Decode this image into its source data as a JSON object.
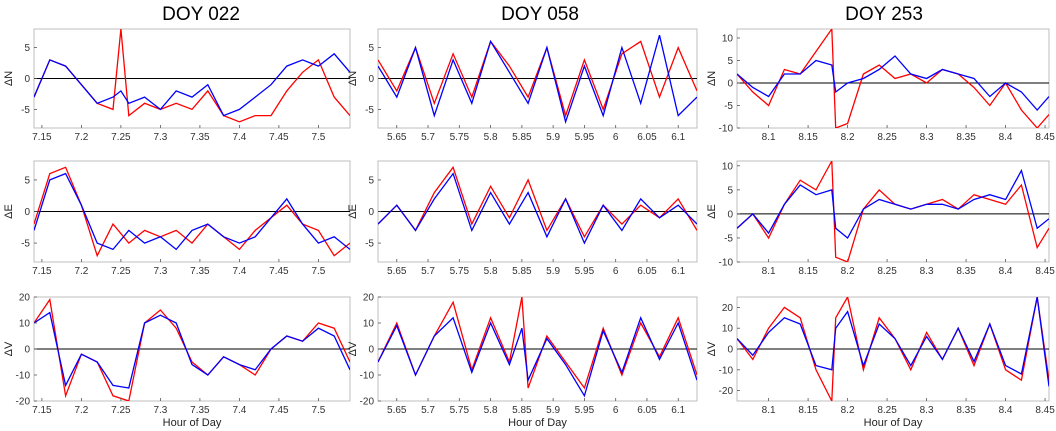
{
  "columns": [
    {
      "title": "DOY 022",
      "xlabel": "Hour of Day",
      "xticks": [
        "7.15",
        "7.2",
        "7.25",
        "7.3",
        "7.35",
        "7.4",
        "7.45",
        "7.5"
      ],
      "xlim": [
        7.14,
        7.54
      ]
    },
    {
      "title": "DOY 058",
      "xlabel": "Hour of Day",
      "xticks": [
        "5.65",
        "5.7",
        "5.75",
        "5.8",
        "5.85",
        "5.9",
        "5.95",
        "6",
        "6.05",
        "6.1"
      ],
      "xlim": [
        5.62,
        6.13
      ]
    },
    {
      "title": "DOY 253",
      "xlabel": "Hour of Day",
      "xticks": [
        "8.1",
        "8.15",
        "8.2",
        "8.25",
        "8.3",
        "8.35",
        "8.4",
        "8.45"
      ],
      "xlim": [
        8.06,
        8.455
      ]
    }
  ],
  "rows": [
    {
      "ylabel": "ΔN"
    },
    {
      "ylabel": "ΔE"
    },
    {
      "ylabel": "ΔV"
    }
  ],
  "chart_data": [
    {
      "type": "line",
      "panel": "DOY 022 ΔN",
      "ylabel": "ΔN",
      "xlim": [
        7.14,
        7.54
      ],
      "ylim": [
        -8,
        8
      ],
      "yticks": [
        -5,
        0,
        5
      ],
      "series": [
        {
          "color": "#ff0000",
          "x": [
            7.14,
            7.16,
            7.18,
            7.2,
            7.22,
            7.24,
            7.25,
            7.26,
            7.28,
            7.3,
            7.32,
            7.34,
            7.36,
            7.38,
            7.4,
            7.42,
            7.44,
            7.46,
            7.48,
            7.5,
            7.52,
            7.54
          ],
          "y": [
            -3,
            3,
            2,
            -1,
            -4,
            -5,
            8,
            -6,
            -4,
            -5,
            -4,
            -5,
            -2,
            -6,
            -7,
            -6,
            -6,
            -2,
            1,
            3,
            -3,
            -6
          ]
        },
        {
          "color": "#0000ff",
          "x": [
            7.14,
            7.16,
            7.18,
            7.2,
            7.22,
            7.24,
            7.25,
            7.26,
            7.28,
            7.3,
            7.32,
            7.34,
            7.36,
            7.38,
            7.4,
            7.42,
            7.44,
            7.46,
            7.48,
            7.5,
            7.52,
            7.54
          ],
          "y": [
            -3,
            3,
            2,
            -1,
            -4,
            -3,
            -2,
            -4,
            -3,
            -5,
            -2,
            -3,
            -1,
            -6,
            -5,
            -3,
            -1,
            2,
            3,
            2,
            4,
            1
          ]
        }
      ]
    },
    {
      "type": "line",
      "panel": "DOY 058 ΔN",
      "ylabel": "ΔN",
      "xlim": [
        5.62,
        6.13
      ],
      "ylim": [
        -8,
        8
      ],
      "yticks": [
        -5,
        0,
        5
      ],
      "series": [
        {
          "color": "#ff0000",
          "x": [
            5.62,
            5.65,
            5.68,
            5.71,
            5.74,
            5.77,
            5.8,
            5.83,
            5.86,
            5.89,
            5.92,
            5.95,
            5.98,
            6.01,
            6.04,
            6.07,
            6.1,
            6.13
          ],
          "y": [
            3,
            -2,
            5,
            -4,
            4,
            -3,
            6,
            2,
            -3,
            5,
            -6,
            3,
            -5,
            4,
            6,
            -3,
            5,
            -2
          ]
        },
        {
          "color": "#0000ff",
          "x": [
            5.62,
            5.65,
            5.68,
            5.71,
            5.74,
            5.77,
            5.8,
            5.83,
            5.86,
            5.89,
            5.92,
            5.95,
            5.98,
            6.01,
            6.04,
            6.07,
            6.1,
            6.13
          ],
          "y": [
            2,
            -3,
            5,
            -6,
            3,
            -4,
            6,
            1,
            -4,
            5,
            -7,
            2,
            -6,
            5,
            -4,
            7,
            -6,
            -3
          ]
        }
      ]
    },
    {
      "type": "line",
      "panel": "DOY 253 ΔN",
      "ylabel": "ΔN",
      "xlim": [
        8.06,
        8.455
      ],
      "ylim": [
        -10,
        12
      ],
      "yticks": [
        -10,
        -5,
        0,
        5,
        10
      ],
      "series": [
        {
          "color": "#ff0000",
          "x": [
            8.06,
            8.08,
            8.1,
            8.12,
            8.14,
            8.16,
            8.18,
            8.185,
            8.2,
            8.22,
            8.24,
            8.26,
            8.28,
            8.3,
            8.32,
            8.34,
            8.36,
            8.38,
            8.4,
            8.42,
            8.44,
            8.455
          ],
          "y": [
            2,
            -2,
            -5,
            3,
            2,
            7,
            12,
            -10,
            -9,
            2,
            4,
            1,
            2,
            0,
            3,
            2,
            -1,
            -5,
            0,
            -6,
            -10,
            -7
          ]
        },
        {
          "color": "#0000ff",
          "x": [
            8.06,
            8.08,
            8.1,
            8.12,
            8.14,
            8.16,
            8.18,
            8.185,
            8.2,
            8.22,
            8.24,
            8.26,
            8.28,
            8.3,
            8.32,
            8.34,
            8.36,
            8.38,
            8.4,
            8.42,
            8.44,
            8.455
          ],
          "y": [
            2,
            -1,
            -3,
            2,
            2,
            5,
            4,
            -2,
            0,
            1,
            3,
            6,
            2,
            1,
            3,
            2,
            1,
            -3,
            0,
            -2,
            -6,
            -3
          ]
        }
      ]
    },
    {
      "type": "line",
      "panel": "DOY 022 ΔE",
      "ylabel": "ΔE",
      "xlim": [
        7.14,
        7.54
      ],
      "ylim": [
        -8,
        8
      ],
      "yticks": [
        -5,
        0,
        5
      ],
      "series": [
        {
          "color": "#ff0000",
          "x": [
            7.14,
            7.16,
            7.18,
            7.2,
            7.22,
            7.24,
            7.26,
            7.28,
            7.3,
            7.32,
            7.34,
            7.36,
            7.38,
            7.4,
            7.42,
            7.44,
            7.46,
            7.48,
            7.5,
            7.52,
            7.54
          ],
          "y": [
            -2,
            6,
            7,
            1,
            -7,
            -2,
            -5,
            -3,
            -4,
            -3,
            -5,
            -2,
            -4,
            -6,
            -3,
            -1,
            1,
            -2,
            -3,
            -7,
            -5
          ]
        },
        {
          "color": "#0000ff",
          "x": [
            7.14,
            7.16,
            7.18,
            7.2,
            7.22,
            7.24,
            7.26,
            7.28,
            7.3,
            7.32,
            7.34,
            7.36,
            7.38,
            7.4,
            7.42,
            7.44,
            7.46,
            7.48,
            7.5,
            7.52,
            7.54
          ],
          "y": [
            -3,
            5,
            6,
            1,
            -5,
            -6,
            -3,
            -5,
            -4,
            -6,
            -3,
            -2,
            -4,
            -5,
            -4,
            -1,
            2,
            -2,
            -5,
            -4,
            -6
          ]
        }
      ]
    },
    {
      "type": "line",
      "panel": "DOY 058 ΔE",
      "ylabel": "ΔE",
      "xlim": [
        5.62,
        6.13
      ],
      "ylim": [
        -8,
        8
      ],
      "yticks": [
        -5,
        0,
        5
      ],
      "series": [
        {
          "color": "#ff0000",
          "x": [
            5.62,
            5.65,
            5.68,
            5.71,
            5.74,
            5.77,
            5.8,
            5.83,
            5.86,
            5.89,
            5.92,
            5.95,
            5.98,
            6.01,
            6.04,
            6.07,
            6.1,
            6.13
          ],
          "y": [
            -2,
            1,
            -3,
            3,
            7,
            -2,
            4,
            -1,
            5,
            -3,
            2,
            -4,
            1,
            -2,
            1,
            -1,
            2,
            -3
          ]
        },
        {
          "color": "#0000ff",
          "x": [
            5.62,
            5.65,
            5.68,
            5.71,
            5.74,
            5.77,
            5.8,
            5.83,
            5.86,
            5.89,
            5.92,
            5.95,
            5.98,
            6.01,
            6.04,
            6.07,
            6.1,
            6.13
          ],
          "y": [
            -2,
            1,
            -3,
            2,
            6,
            -3,
            3,
            -2,
            3,
            -4,
            2,
            -5,
            1,
            -3,
            2,
            -1,
            1,
            -2
          ]
        }
      ]
    },
    {
      "type": "line",
      "panel": "DOY 253 ΔE",
      "ylabel": "ΔE",
      "xlim": [
        8.06,
        8.455
      ],
      "ylim": [
        -10,
        11
      ],
      "yticks": [
        -10,
        -5,
        0,
        5,
        10
      ],
      "series": [
        {
          "color": "#ff0000",
          "x": [
            8.06,
            8.08,
            8.1,
            8.12,
            8.14,
            8.16,
            8.18,
            8.185,
            8.2,
            8.22,
            8.24,
            8.26,
            8.28,
            8.3,
            8.32,
            8.34,
            8.36,
            8.38,
            8.4,
            8.42,
            8.44,
            8.455
          ],
          "y": [
            -3,
            0,
            -5,
            2,
            7,
            5,
            11,
            -9,
            -10,
            1,
            5,
            2,
            1,
            2,
            3,
            1,
            4,
            3,
            2,
            6,
            -7,
            -3
          ]
        },
        {
          "color": "#0000ff",
          "x": [
            8.06,
            8.08,
            8.1,
            8.12,
            8.14,
            8.16,
            8.18,
            8.185,
            8.2,
            8.22,
            8.24,
            8.26,
            8.28,
            8.3,
            8.32,
            8.34,
            8.36,
            8.38,
            8.4,
            8.42,
            8.44,
            8.455
          ],
          "y": [
            -3,
            0,
            -4,
            2,
            6,
            4,
            5,
            -3,
            -5,
            1,
            3,
            2,
            1,
            2,
            2,
            1,
            3,
            4,
            3,
            9,
            -3,
            -1
          ]
        }
      ]
    },
    {
      "type": "line",
      "panel": "DOY 022 ΔV",
      "ylabel": "ΔV",
      "xlim": [
        7.14,
        7.54
      ],
      "ylim": [
        -20,
        20
      ],
      "yticks": [
        -20,
        -10,
        0,
        10,
        20
      ],
      "series": [
        {
          "color": "#ff0000",
          "x": [
            7.14,
            7.16,
            7.18,
            7.2,
            7.22,
            7.24,
            7.26,
            7.28,
            7.3,
            7.32,
            7.34,
            7.36,
            7.38,
            7.4,
            7.42,
            7.44,
            7.46,
            7.48,
            7.5,
            7.52,
            7.54
          ],
          "y": [
            10,
            19,
            -18,
            -2,
            -5,
            -18,
            -20,
            10,
            15,
            8,
            -5,
            -10,
            -3,
            -6,
            -10,
            0,
            5,
            3,
            10,
            8,
            -5
          ]
        },
        {
          "color": "#0000ff",
          "x": [
            7.14,
            7.16,
            7.18,
            7.2,
            7.22,
            7.24,
            7.26,
            7.28,
            7.3,
            7.32,
            7.34,
            7.36,
            7.38,
            7.4,
            7.42,
            7.44,
            7.46,
            7.48,
            7.5,
            7.52,
            7.54
          ],
          "y": [
            10,
            14,
            -14,
            -2,
            -5,
            -14,
            -15,
            10,
            13,
            10,
            -6,
            -10,
            -3,
            -6,
            -8,
            0,
            5,
            3,
            8,
            5,
            -8
          ]
        }
      ]
    },
    {
      "type": "line",
      "panel": "DOY 058 ΔV",
      "ylabel": "ΔV",
      "xlim": [
        5.62,
        6.13
      ],
      "ylim": [
        -20,
        20
      ],
      "yticks": [
        -20,
        -10,
        0,
        10,
        20
      ],
      "series": [
        {
          "color": "#ff0000",
          "x": [
            5.62,
            5.65,
            5.68,
            5.71,
            5.74,
            5.77,
            5.8,
            5.83,
            5.85,
            5.86,
            5.89,
            5.92,
            5.95,
            5.98,
            6.01,
            6.04,
            6.07,
            6.1,
            6.13
          ],
          "y": [
            -5,
            10,
            -10,
            5,
            18,
            -8,
            12,
            -5,
            20,
            -15,
            5,
            -5,
            -15,
            8,
            -10,
            10,
            -3,
            12,
            -10
          ]
        },
        {
          "color": "#0000ff",
          "x": [
            5.62,
            5.65,
            5.68,
            5.71,
            5.74,
            5.77,
            5.8,
            5.83,
            5.85,
            5.86,
            5.89,
            5.92,
            5.95,
            5.98,
            6.01,
            6.04,
            6.07,
            6.1,
            6.13
          ],
          "y": [
            -5,
            9,
            -10,
            5,
            12,
            -9,
            10,
            -6,
            8,
            -12,
            4,
            -6,
            -18,
            7,
            -9,
            12,
            -4,
            10,
            -12
          ]
        }
      ]
    },
    {
      "type": "line",
      "panel": "DOY 253 ΔV",
      "ylabel": "ΔV",
      "xlim": [
        8.06,
        8.455
      ],
      "ylim": [
        -25,
        25
      ],
      "yticks": [
        -20,
        -10,
        0,
        10,
        20
      ],
      "series": [
        {
          "color": "#ff0000",
          "x": [
            8.06,
            8.08,
            8.1,
            8.12,
            8.14,
            8.16,
            8.18,
            8.185,
            8.2,
            8.22,
            8.24,
            8.26,
            8.28,
            8.3,
            8.32,
            8.34,
            8.36,
            8.38,
            8.4,
            8.42,
            8.44,
            8.455
          ],
          "y": [
            5,
            -5,
            10,
            20,
            15,
            -10,
            -25,
            15,
            25,
            -10,
            15,
            5,
            -10,
            8,
            -5,
            10,
            -8,
            12,
            -10,
            -15,
            25,
            -15
          ]
        },
        {
          "color": "#0000ff",
          "x": [
            8.06,
            8.08,
            8.1,
            8.12,
            8.14,
            8.16,
            8.18,
            8.185,
            8.2,
            8.22,
            8.24,
            8.26,
            8.28,
            8.3,
            8.32,
            8.34,
            8.36,
            8.38,
            8.4,
            8.42,
            8.44,
            8.455
          ],
          "y": [
            5,
            -3,
            8,
            15,
            12,
            -8,
            -10,
            10,
            18,
            -8,
            12,
            5,
            -8,
            6,
            -5,
            10,
            -6,
            12,
            -8,
            -12,
            25,
            -18
          ]
        }
      ]
    }
  ]
}
